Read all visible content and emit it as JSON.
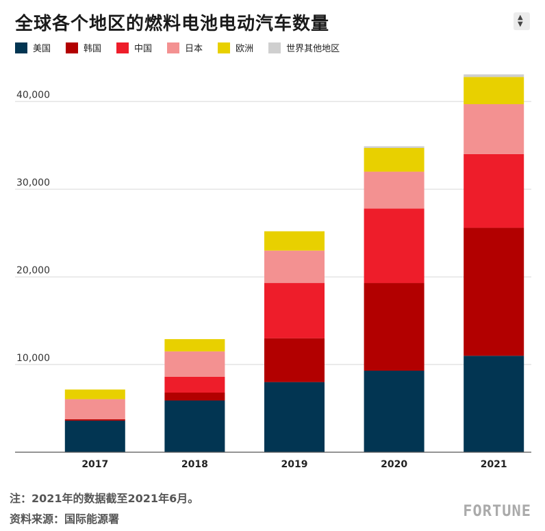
{
  "title": "全球各个地区的燃料电池电动汽车数量",
  "footnote": "注：2021年的数据截至2021年6月。",
  "source": "资料来源：国际能源署",
  "brand": "FORTUNE",
  "colors": {
    "美国": "#023552",
    "韩国": "#b20000",
    "中国": "#ee1d2a",
    "日本": "#f39191",
    "欧洲": "#e8d000",
    "世界其他地区": "#cfcfcf"
  },
  "chart_data": {
    "type": "bar",
    "stacked": true,
    "title": "全球各个地区的燃料电池电动汽车数量",
    "categories": [
      "2017",
      "2018",
      "2019",
      "2020",
      "2021"
    ],
    "series": [
      {
        "name": "美国",
        "values": [
          3600,
          5900,
          8000,
          9300,
          11000
        ]
      },
      {
        "name": "韩国",
        "values": [
          150,
          900,
          5000,
          10000,
          14600
        ]
      },
      {
        "name": "中国",
        "values": [
          0,
          1800,
          6300,
          8500,
          8400
        ]
      },
      {
        "name": "日本",
        "values": [
          2300,
          2900,
          3700,
          4200,
          5700
        ]
      },
      {
        "name": "欧洲",
        "values": [
          1100,
          1400,
          2200,
          2700,
          3100
        ]
      },
      {
        "name": "世界其他地区",
        "values": [
          0,
          0,
          0,
          200,
          300
        ]
      }
    ],
    "ylim": [
      0,
      44000
    ],
    "yticks": [
      {
        "value": 10000,
        "label": "10,000"
      },
      {
        "value": 20000,
        "label": "20,000"
      },
      {
        "value": 30000,
        "label": "30,000"
      },
      {
        "value": 40000,
        "label": "40,000"
      }
    ],
    "grid": true,
    "legend_position": "top-left"
  }
}
